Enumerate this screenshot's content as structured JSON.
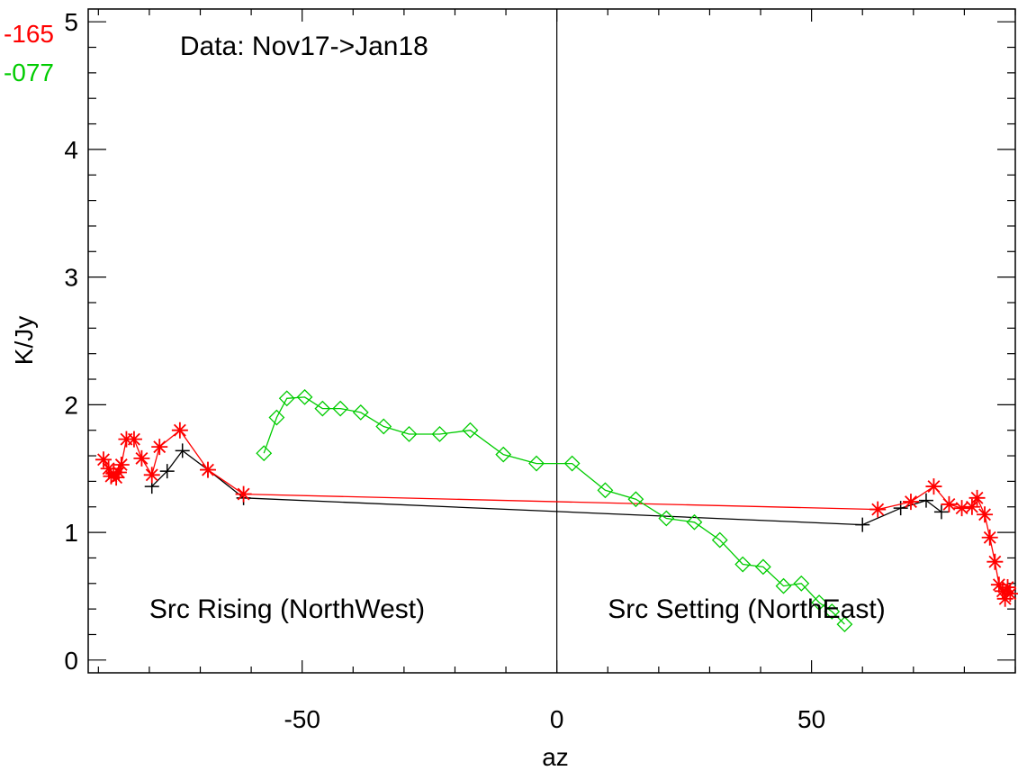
{
  "chart_data": {
    "type": "line",
    "title": "",
    "xlabel": "az",
    "ylabel": "K/Jy",
    "xlim": [
      -92,
      90
    ],
    "ylim": [
      -0.1,
      5.1
    ],
    "x_ticks": [
      -50,
      0,
      50
    ],
    "y_ticks": [
      0,
      1,
      2,
      3,
      4,
      5
    ],
    "vline_x": 0,
    "grid": false,
    "annotations": [
      {
        "text": "Data: Nov17->Jan18",
        "x": -74,
        "y": 4.74
      },
      {
        "text": "Src Rising (NorthWest)",
        "x": -80,
        "y": 0.33
      },
      {
        "text": "Src Setting (NorthEast)",
        "x": 10,
        "y": 0.33
      }
    ],
    "legend_entries": [
      {
        "text": "-165",
        "color": "#ff0000"
      },
      {
        "text": "-077",
        "color": "#00cc00"
      }
    ],
    "series": [
      {
        "color": "#000000",
        "marker": "plus",
        "points": [
          [
            -79.5,
            1.36
          ],
          [
            -76.5,
            1.48
          ],
          [
            -73.5,
            1.64
          ],
          [
            -68.5,
            1.49
          ],
          [
            -61.5,
            1.27
          ],
          [
            60,
            1.06
          ],
          [
            67.5,
            1.19
          ],
          [
            72.5,
            1.25
          ],
          [
            75.5,
            1.16
          ]
        ]
      },
      {
        "color": "#ff0000",
        "marker": "asterisk",
        "points": [
          [
            -89,
            1.57
          ],
          [
            -88,
            1.5
          ],
          [
            -87.5,
            1.44
          ],
          [
            -87,
            1.46
          ],
          [
            -86.5,
            1.43
          ],
          [
            -86,
            1.47
          ],
          [
            -85.5,
            1.53
          ],
          [
            -84.5,
            1.73
          ],
          [
            -83,
            1.73
          ],
          [
            -81.5,
            1.58
          ],
          [
            -79.5,
            1.45
          ],
          [
            -78,
            1.67
          ],
          [
            -74,
            1.8
          ],
          [
            -68.5,
            1.49
          ],
          [
            -61.5,
            1.3
          ],
          [
            63,
            1.18
          ],
          [
            69.5,
            1.24
          ],
          [
            74,
            1.36
          ],
          [
            77,
            1.22
          ],
          [
            79.5,
            1.19
          ],
          [
            81.5,
            1.2
          ],
          [
            82.5,
            1.27
          ],
          [
            84,
            1.14
          ],
          [
            85,
            0.96
          ],
          [
            86,
            0.77
          ],
          [
            86.8,
            0.59
          ],
          [
            87.5,
            0.54
          ],
          [
            88,
            0.48
          ],
          [
            88.5,
            0.57
          ],
          [
            89,
            0.52
          ]
        ]
      },
      {
        "color": "#00cc00",
        "marker": "diamond",
        "points": [
          [
            -57.5,
            1.62
          ],
          [
            -55,
            1.9
          ],
          [
            -53,
            2.05
          ],
          [
            -49.5,
            2.06
          ],
          [
            -46,
            1.97
          ],
          [
            -42.5,
            1.97
          ],
          [
            -38.5,
            1.94
          ],
          [
            -34,
            1.83
          ],
          [
            -29,
            1.77
          ],
          [
            -23,
            1.77
          ],
          [
            -17,
            1.8
          ],
          [
            -10.5,
            1.61
          ],
          [
            -4,
            1.54
          ],
          [
            3,
            1.54
          ],
          [
            9.5,
            1.33
          ],
          [
            15.5,
            1.26
          ],
          [
            21.5,
            1.11
          ],
          [
            27,
            1.08
          ],
          [
            32,
            0.94
          ],
          [
            36.5,
            0.75
          ],
          [
            40.5,
            0.73
          ],
          [
            44.5,
            0.58
          ],
          [
            48,
            0.6
          ],
          [
            51.5,
            0.45
          ],
          [
            54,
            0.38
          ],
          [
            56.5,
            0.28
          ]
        ]
      }
    ]
  }
}
